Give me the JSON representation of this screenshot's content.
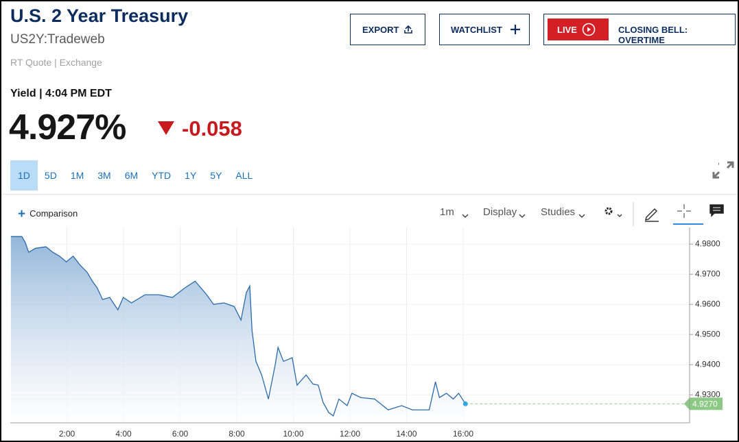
{
  "header": {
    "title": "U.S. 2 Year Treasury",
    "symbol": "US2Y:Tradeweb",
    "source": "RT Quote | Exchange"
  },
  "quote": {
    "label": "Yield | 4:04 PM EDT",
    "last": "4.927%",
    "change": "-0.058"
  },
  "buttons": {
    "export": "EXPORT",
    "watchlist": "WATCHLIST",
    "live": "LIVE",
    "program": "CLOSING BELL: OVERTIME"
  },
  "ranges": [
    "1D",
    "5D",
    "1M",
    "3M",
    "6M",
    "YTD",
    "1Y",
    "5Y",
    "ALL"
  ],
  "toolbar": {
    "comparison": "Comparison",
    "interval": "1m",
    "display": "Display",
    "studies": "Studies"
  },
  "chart_data": {
    "type": "line",
    "color": "#2a6aa8",
    "x": [
      0.02,
      0.41,
      0.53,
      0.65,
      0.89,
      1.26,
      1.5,
      1.74,
      1.98,
      2.22,
      2.47,
      2.71,
      2.9,
      3.07,
      3.26,
      3.51,
      3.8,
      3.99,
      4.28,
      4.76,
      5.25,
      5.73,
      6.17,
      6.53,
      6.94,
      7.18,
      7.55,
      7.91,
      8.15,
      8.34,
      8.46,
      8.54,
      8.68,
      8.88,
      9.12,
      9.36,
      9.46,
      9.65,
      9.96,
      10.13,
      10.45,
      10.69,
      10.88,
      11.05,
      11.25,
      11.41,
      11.61,
      11.9,
      12.07,
      12.38,
      12.87,
      13.35,
      13.83,
      14.2,
      14.8,
      15.02,
      15.16,
      15.41,
      15.65,
      15.84,
      16.08
    ],
    "values": [
      4.9825,
      4.9825,
      4.9805,
      4.9773,
      4.9786,
      4.9791,
      4.9773,
      4.976,
      4.9741,
      4.976,
      4.973,
      4.9707,
      4.9677,
      4.9655,
      4.9616,
      4.9623,
      4.9582,
      4.9623,
      4.9605,
      4.9632,
      4.9632,
      4.9623,
      4.9655,
      4.9677,
      4.9632,
      4.96,
      4.9605,
      4.9593,
      4.9548,
      4.9639,
      4.9661,
      4.9514,
      4.9411,
      4.9366,
      4.9286,
      4.94,
      4.9457,
      4.9411,
      4.9423,
      4.9332,
      4.9366,
      4.9336,
      4.9332,
      4.9275,
      4.9241,
      4.923,
      4.9286,
      4.9264,
      4.9305,
      4.9291,
      4.9286,
      4.925,
      4.9264,
      4.925,
      4.925,
      4.9343,
      4.9291,
      4.9305,
      4.9286,
      4.9305,
      4.927
    ],
    "xlim": [
      0,
      24
    ],
    "xticks": [
      {
        "value": 2,
        "label": "2:00"
      },
      {
        "value": 4,
        "label": "4:00"
      },
      {
        "value": 6,
        "label": "6:00"
      },
      {
        "value": 8,
        "label": "8:00"
      },
      {
        "value": 10,
        "label": "10:00"
      },
      {
        "value": 12,
        "label": "12:00"
      },
      {
        "value": 14,
        "label": "14:00"
      },
      {
        "value": 16,
        "label": "16:00"
      }
    ],
    "ylim": [
      4.9207,
      4.9855
    ],
    "yticks": [
      {
        "value": 4.93,
        "label": "4.9300"
      },
      {
        "value": 4.94,
        "label": "4.9400"
      },
      {
        "value": 4.95,
        "label": "4.9500"
      },
      {
        "value": 4.96,
        "label": "4.9600"
      },
      {
        "value": 4.97,
        "label": "4.9700"
      },
      {
        "value": 4.98,
        "label": "4.9800"
      }
    ],
    "current_value": {
      "value": 4.927,
      "label": "4.9270"
    },
    "grid": true
  }
}
